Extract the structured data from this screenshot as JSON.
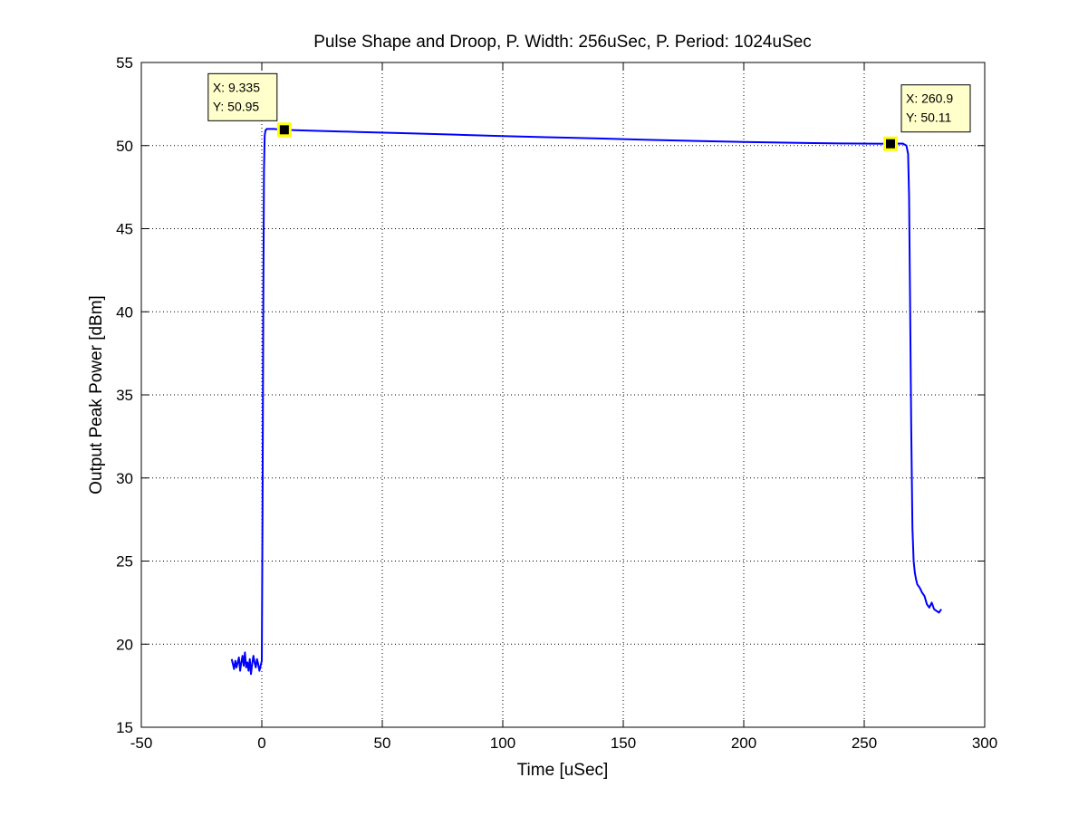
{
  "chart_data": {
    "type": "line",
    "title": "Pulse Shape and Droop, P. Width: 256uSec, P. Period: 1024uSec",
    "xlabel": "Time [uSec]",
    "ylabel": "Output Peak Power [dBm]",
    "xlim": [
      -50,
      300
    ],
    "ylim": [
      15,
      55
    ],
    "xticks": [
      "-50",
      "0",
      "50",
      "100",
      "150",
      "200",
      "250",
      "300"
    ],
    "yticks": [
      "15",
      "20",
      "25",
      "30",
      "35",
      "40",
      "45",
      "50",
      "55"
    ],
    "grid": true,
    "legend": "none",
    "series": [
      {
        "color": "#0000ff",
        "x": [
          -12.5,
          -12,
          -11.5,
          -11,
          -10.5,
          -10,
          -9.5,
          -9,
          -8.5,
          -8,
          -7.5,
          -7,
          -6.5,
          -6,
          -5.5,
          -5,
          -4.5,
          -4,
          -3.5,
          -3,
          -2.5,
          -2,
          -1.5,
          -1,
          -0.5,
          0,
          0.3,
          0.6,
          0.9,
          1.2,
          1.5,
          2,
          3,
          5,
          9.335,
          20,
          40,
          60,
          80,
          100,
          120,
          140,
          160,
          180,
          200,
          220,
          240,
          260.9,
          266,
          267.5,
          268.2,
          268.6,
          269,
          269.5,
          270,
          270.5,
          271,
          271.5,
          272,
          273,
          274,
          275,
          276,
          277,
          278,
          279,
          280,
          281,
          282
        ],
        "y": [
          19.1,
          18.8,
          18.5,
          19.0,
          18.6,
          18.9,
          19.2,
          18.4,
          18.9,
          19.3,
          18.7,
          19.5,
          18.6,
          18.9,
          18.4,
          19.1,
          18.2,
          18.8,
          19.3,
          18.9,
          18.6,
          19.1,
          18.8,
          18.4,
          18.7,
          19.0,
          28.0,
          40.0,
          48.5,
          50.6,
          50.9,
          51.0,
          51.0,
          51.0,
          50.95,
          50.9,
          50.82,
          50.74,
          50.66,
          50.57,
          50.5,
          50.43,
          50.35,
          50.28,
          50.22,
          50.17,
          50.13,
          50.11,
          50.12,
          50.0,
          49.5,
          47.0,
          41.0,
          33.0,
          27.0,
          25.0,
          24.3,
          23.9,
          23.6,
          23.4,
          23.1,
          22.9,
          22.4,
          22.2,
          22.5,
          22.1,
          22.0,
          21.9,
          22.1
        ]
      }
    ],
    "annotations": [
      {
        "x": 9.335,
        "y": 50.95,
        "xtext": "X: 9.335",
        "ytext": "Y: 50.95",
        "placement": "upper-left"
      },
      {
        "x": 260.9,
        "y": 50.11,
        "xtext": "X: 260.9",
        "ytext": "Y: 50.11",
        "placement": "upper-right"
      }
    ],
    "colors": {
      "line": "#0000ff",
      "tip_fill": "#ffffcc",
      "tip_border": "#000000",
      "marker": "#000000",
      "marker_halo": "#ffff00"
    }
  }
}
